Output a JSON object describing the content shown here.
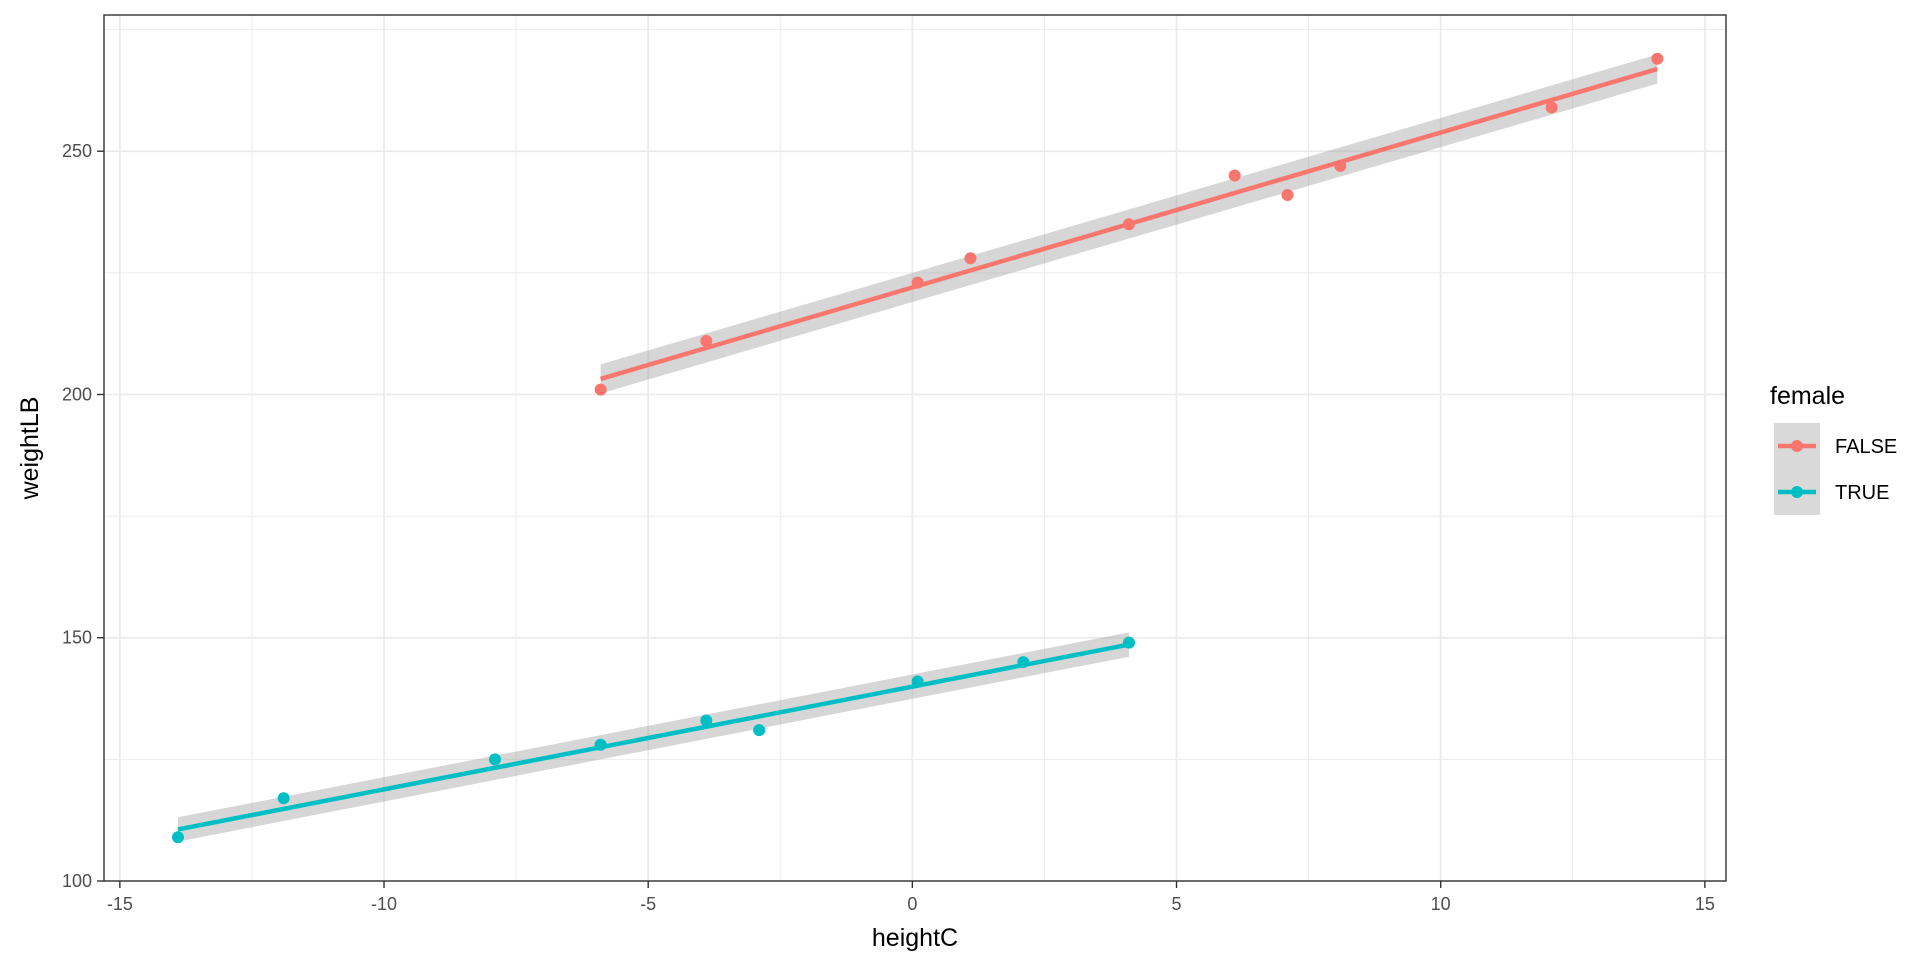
{
  "chart_data": {
    "type": "scatter",
    "title": "",
    "xlabel": "heightC",
    "ylabel": "weightLB",
    "xlim": [
      -15.3,
      15.4
    ],
    "ylim": [
      100,
      278
    ],
    "xticks": [
      -15,
      -10,
      -5,
      0,
      5,
      10,
      15
    ],
    "xtick_labels": [
      "-15",
      "-10",
      "-5",
      "0",
      "5",
      "10",
      "15"
    ],
    "yticks": [
      100,
      150,
      200,
      250
    ],
    "ytick_labels": [
      "100",
      "150",
      "200",
      "250"
    ],
    "grid": true,
    "legend": {
      "title": "female",
      "position": "right"
    },
    "series": [
      {
        "name": "FALSE",
        "color": "#F8766D",
        "x": [
          -5.9,
          -3.9,
          0.1,
          1.1,
          4.1,
          6.1,
          7.1,
          8.1,
          12.1,
          14.1
        ],
        "y": [
          201,
          211,
          223,
          228,
          235,
          245,
          241,
          247,
          259,
          269
        ],
        "fit": {
          "x": [
            -5.9,
            14.1
          ],
          "y": [
            203.2,
            266.9
          ],
          "se": [
            3.0,
            3.0
          ]
        }
      },
      {
        "name": "TRUE",
        "color": "#00BFC4",
        "x": [
          -13.9,
          -11.9,
          -7.9,
          -5.9,
          -3.9,
          -2.9,
          0.1,
          2.1,
          4.1
        ],
        "y": [
          109,
          117,
          125,
          128,
          133,
          131,
          141,
          145,
          149
        ],
        "fit": {
          "x": [
            -13.9,
            4.1
          ],
          "y": [
            110.6,
            148.6
          ],
          "se": [
            2.5,
            2.5
          ]
        }
      }
    ]
  }
}
